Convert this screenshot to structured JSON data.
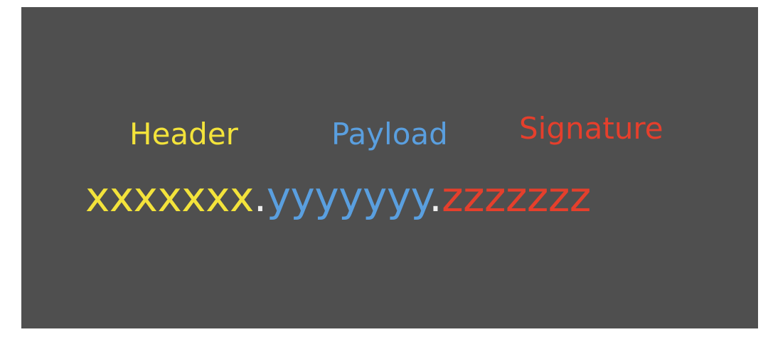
{
  "labels": {
    "header": "Header",
    "payload": "Payload",
    "signature": "Signature"
  },
  "token": {
    "header": "xxxxxxx",
    "separator_1": ".",
    "payload": "yyyyyyy",
    "separator_2": ".",
    "signature": "zzzzzzz"
  },
  "colors": {
    "background": "#4f4f4f",
    "header": "#f3e33b",
    "payload": "#5a9fdf",
    "signature": "#e53f2c",
    "separator": "#eeeeee"
  }
}
